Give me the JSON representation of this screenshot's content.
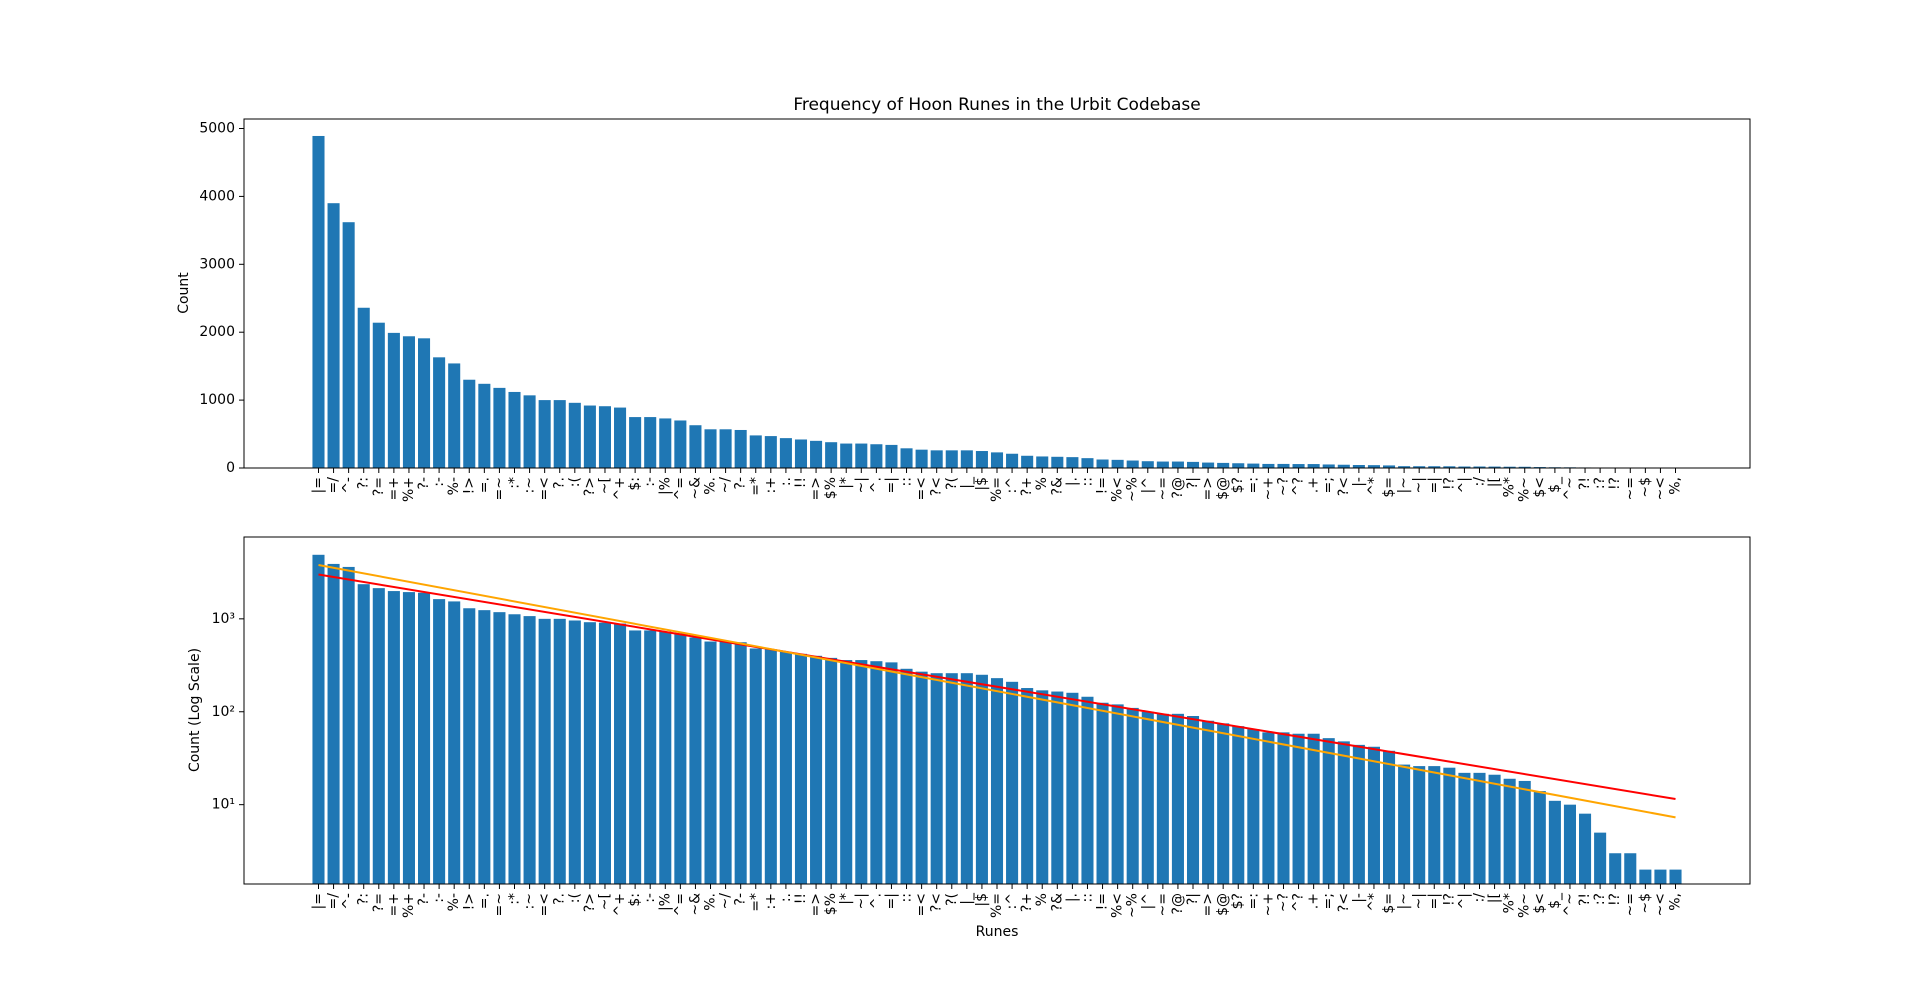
{
  "chart_data": [
    {
      "type": "bar",
      "title": "Frequency of Hoon Runes in the Urbit Codebase",
      "ylabel": "Count",
      "color": "#1f77b4",
      "log": false,
      "categories": [
        "|=",
        "=/",
        "^-",
        "?:",
        "?=",
        "=+",
        "%+",
        "?-",
        ":-",
        "%-",
        "!>",
        "=.",
        "=~",
        ":*",
        ":~",
        "=<",
        "?.",
        ":(",
        "?>",
        "~[",
        "^+",
        "$:",
        ":-",
        "|%",
        "^=",
        "~&",
        "%.",
        "~/",
        "?-",
        "=*",
        ":+",
        ":.",
        "!!",
        "=>",
        "$%",
        "|*",
        "~|",
        "^.",
        "=|",
        "::",
        "=<",
        "?<",
        "?(",
        "|_",
        "|$",
        "%=",
        ":^",
        "?+",
        "%",
        "?&",
        "|.",
        "::",
        "!=",
        "%<",
        "~%",
        "|^",
        "~=",
        "?@",
        "?|",
        "=>",
        "$@",
        "$?",
        "=:",
        "~+",
        "~?",
        "^?",
        ".+",
        "=;",
        "?<",
        "|-",
        "^*",
        "$=",
        "|~",
        "~|",
        "=|",
        "!?",
        "^|",
        ":/",
        "|[",
        "%*",
        "%~",
        "$<",
        "$_",
        "^~",
        "?!",
        ":?",
        "!?",
        "~=",
        "~$",
        "~<",
        "%,"
      ],
      "values": [
        4890,
        3900,
        3620,
        2360,
        2140,
        1990,
        1940,
        1910,
        1630,
        1540,
        1300,
        1240,
        1180,
        1120,
        1070,
        1000,
        1000,
        960,
        920,
        910,
        890,
        750,
        750,
        730,
        700,
        630,
        570,
        570,
        560,
        480,
        470,
        440,
        420,
        400,
        380,
        360,
        360,
        350,
        340,
        290,
        270,
        260,
        260,
        260,
        250,
        230,
        210,
        180,
        170,
        165,
        160,
        145,
        125,
        120,
        110,
        100,
        95,
        95,
        90,
        80,
        75,
        70,
        65,
        60,
        60,
        58,
        58,
        52,
        48,
        44,
        42,
        38,
        27,
        26,
        26,
        25,
        22,
        22,
        21,
        19,
        18,
        14,
        11,
        10,
        8,
        5,
        3,
        3,
        2,
        2,
        2
      ],
      "ylim": [
        0,
        5140
      ],
      "yticks": [
        0,
        1000,
        2000,
        3000,
        4000,
        5000
      ]
    },
    {
      "type": "bar",
      "ylabel": "Count (Log Scale)",
      "xlabel": "Runes",
      "color": "#1f77b4",
      "log": true,
      "categories": [
        "|=",
        "=/",
        "^-",
        "?:",
        "?=",
        "=+",
        "%+",
        "?-",
        ":-",
        "%-",
        "!>",
        "=.",
        "=~",
        ":*",
        ":~",
        "=<",
        "?.",
        ":(",
        "?>",
        "~[",
        "^+",
        "$:",
        ":-",
        "|%",
        "^=",
        "~&",
        "%.",
        "~/",
        "?-",
        "=*",
        ":+",
        ":.",
        "!!",
        "=>",
        "$%",
        "|*",
        "~|",
        "^.",
        "=|",
        "::",
        "=<",
        "?<",
        "?(",
        "|_",
        "|$",
        "%=",
        ":^",
        "?+",
        "%",
        "?&",
        "|.",
        "::",
        "!=",
        "%<",
        "~%",
        "|^",
        "~=",
        "?@",
        "?|",
        "=>",
        "$@",
        "$?",
        "=:",
        "~+",
        "~?",
        "^?",
        ".+",
        "=;",
        "?<",
        "|-",
        "^*",
        "$=",
        "|~",
        "~|",
        "=|",
        "!?",
        "^|",
        ":/",
        "|[",
        "%*",
        "%~",
        "$<",
        "$_",
        "^~",
        "?!",
        ":?",
        "!?",
        "~=",
        "~$",
        "~<",
        "%,"
      ],
      "values": [
        4890,
        3900,
        3620,
        2360,
        2140,
        1990,
        1940,
        1910,
        1630,
        1540,
        1300,
        1240,
        1180,
        1120,
        1070,
        1000,
        1000,
        960,
        920,
        910,
        890,
        750,
        750,
        730,
        700,
        630,
        570,
        570,
        560,
        480,
        470,
        440,
        420,
        400,
        380,
        360,
        360,
        350,
        340,
        290,
        270,
        260,
        260,
        260,
        250,
        230,
        210,
        180,
        170,
        165,
        160,
        145,
        125,
        120,
        110,
        100,
        95,
        95,
        90,
        80,
        75,
        70,
        65,
        60,
        60,
        58,
        58,
        52,
        48,
        44,
        42,
        38,
        27,
        26,
        26,
        25,
        22,
        22,
        21,
        19,
        18,
        14,
        11,
        10,
        8,
        5,
        3,
        3,
        2,
        2,
        2
      ],
      "ylim": [
        1.4,
        7600
      ],
      "yticks": [
        {
          "value": 10,
          "label": "10¹"
        },
        {
          "value": 100,
          "label": "10²"
        },
        {
          "value": 1000,
          "label": "10³"
        }
      ],
      "trend_lines": [
        {
          "color": "#ff0000",
          "values": [
            3000,
            11.5
          ]
        },
        {
          "color": "#ffa500",
          "values": [
            3800,
            7.3
          ]
        }
      ]
    }
  ]
}
